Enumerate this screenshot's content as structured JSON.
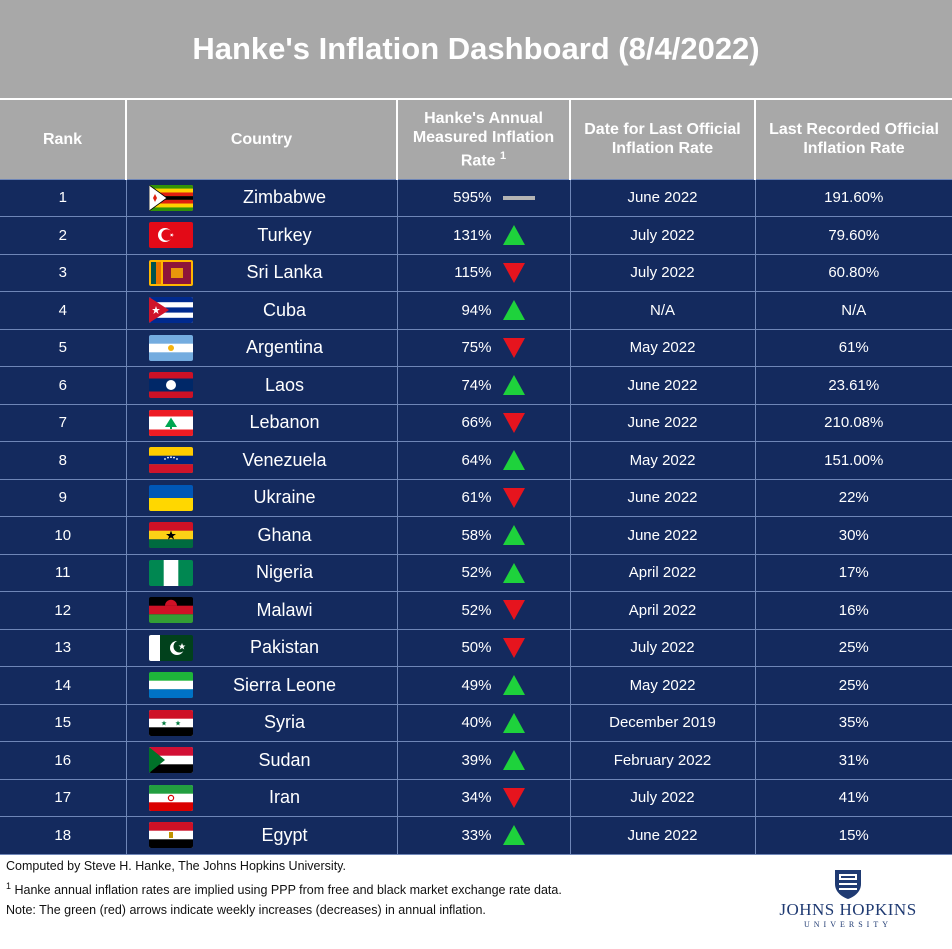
{
  "title": "Hanke's Inflation Dashboard (8/4/2022)",
  "columns": {
    "rank": "Rank",
    "country": "Country",
    "hanke_line1": "Hanke's Annual",
    "hanke_line2": "Measured Inflation",
    "hanke_line3": "Rate",
    "hanke_footnote_mark": "1",
    "date_line1": "Date for Last Official",
    "date_line2": "Inflation Rate",
    "official_line1": "Last Recorded Official",
    "official_line2": "Inflation Rate"
  },
  "colors": {
    "header_bg": "#a8a8a8",
    "row_bg": "#142a5e",
    "up": "#1ed23c",
    "down": "#e6141e",
    "flat": "#b4b4b4"
  },
  "chart_data": {
    "type": "table",
    "title": "Hanke's Inflation Dashboard (8/4/2022)",
    "rows": [
      {
        "rank": "1",
        "country": "Zimbabwe",
        "flag": "zw",
        "hanke_rate": "595%",
        "trend": "flat",
        "date": "June 2022",
        "official": "191.60%"
      },
      {
        "rank": "2",
        "country": "Turkey",
        "flag": "tr",
        "hanke_rate": "131%",
        "trend": "up",
        "date": "July 2022",
        "official": "79.60%"
      },
      {
        "rank": "3",
        "country": "Sri Lanka",
        "flag": "lk",
        "hanke_rate": "115%",
        "trend": "down",
        "date": "July 2022",
        "official": "60.80%"
      },
      {
        "rank": "4",
        "country": "Cuba",
        "flag": "cu",
        "hanke_rate": "94%",
        "trend": "up",
        "date": "N/A",
        "official": "N/A"
      },
      {
        "rank": "5",
        "country": "Argentina",
        "flag": "ar",
        "hanke_rate": "75%",
        "trend": "down",
        "date": "May 2022",
        "official": "61%"
      },
      {
        "rank": "6",
        "country": "Laos",
        "flag": "la",
        "hanke_rate": "74%",
        "trend": "up",
        "date": "June 2022",
        "official": "23.61%"
      },
      {
        "rank": "7",
        "country": "Lebanon",
        "flag": "lb",
        "hanke_rate": "66%",
        "trend": "down",
        "date": "June 2022",
        "official": "210.08%"
      },
      {
        "rank": "8",
        "country": "Venezuela",
        "flag": "ve",
        "hanke_rate": "64%",
        "trend": "up",
        "date": "May 2022",
        "official": "151.00%"
      },
      {
        "rank": "9",
        "country": "Ukraine",
        "flag": "ua",
        "hanke_rate": "61%",
        "trend": "down",
        "date": "June 2022",
        "official": "22%"
      },
      {
        "rank": "10",
        "country": "Ghana",
        "flag": "gh",
        "hanke_rate": "58%",
        "trend": "up",
        "date": "June 2022",
        "official": "30%"
      },
      {
        "rank": "11",
        "country": "Nigeria",
        "flag": "ng",
        "hanke_rate": "52%",
        "trend": "up",
        "date": "April 2022",
        "official": "17%"
      },
      {
        "rank": "12",
        "country": "Malawi",
        "flag": "mw",
        "hanke_rate": "52%",
        "trend": "down",
        "date": "April 2022",
        "official": "16%"
      },
      {
        "rank": "13",
        "country": "Pakistan",
        "flag": "pk",
        "hanke_rate": "50%",
        "trend": "down",
        "date": "July 2022",
        "official": "25%"
      },
      {
        "rank": "14",
        "country": "Sierra Leone",
        "flag": "sl",
        "hanke_rate": "49%",
        "trend": "up",
        "date": "May 2022",
        "official": "25%"
      },
      {
        "rank": "15",
        "country": "Syria",
        "flag": "sy",
        "hanke_rate": "40%",
        "trend": "up",
        "date": "December 2019",
        "official": "35%"
      },
      {
        "rank": "16",
        "country": "Sudan",
        "flag": "sd",
        "hanke_rate": "39%",
        "trend": "up",
        "date": "February 2022",
        "official": "31%"
      },
      {
        "rank": "17",
        "country": "Iran",
        "flag": "ir",
        "hanke_rate": "34%",
        "trend": "down",
        "date": "July 2022",
        "official": "41%"
      },
      {
        "rank": "18",
        "country": "Egypt",
        "flag": "eg",
        "hanke_rate": "33%",
        "trend": "up",
        "date": "June 2022",
        "official": "15%"
      }
    ]
  },
  "footer": {
    "line1": "Computed by Steve H. Hanke, The Johns Hopkins University.",
    "line2_mark": "1",
    "line2": " Hanke annual inflation rates are implied using PPP from free and black market exchange rate data.",
    "line3": "Note: The green (red) arrows indicate weekly increases (decreases) in annual inflation."
  },
  "logo": {
    "name": "JOHNS HOPKINS",
    "sub": "UNIVERSITY",
    "icon": "shield-icon"
  }
}
